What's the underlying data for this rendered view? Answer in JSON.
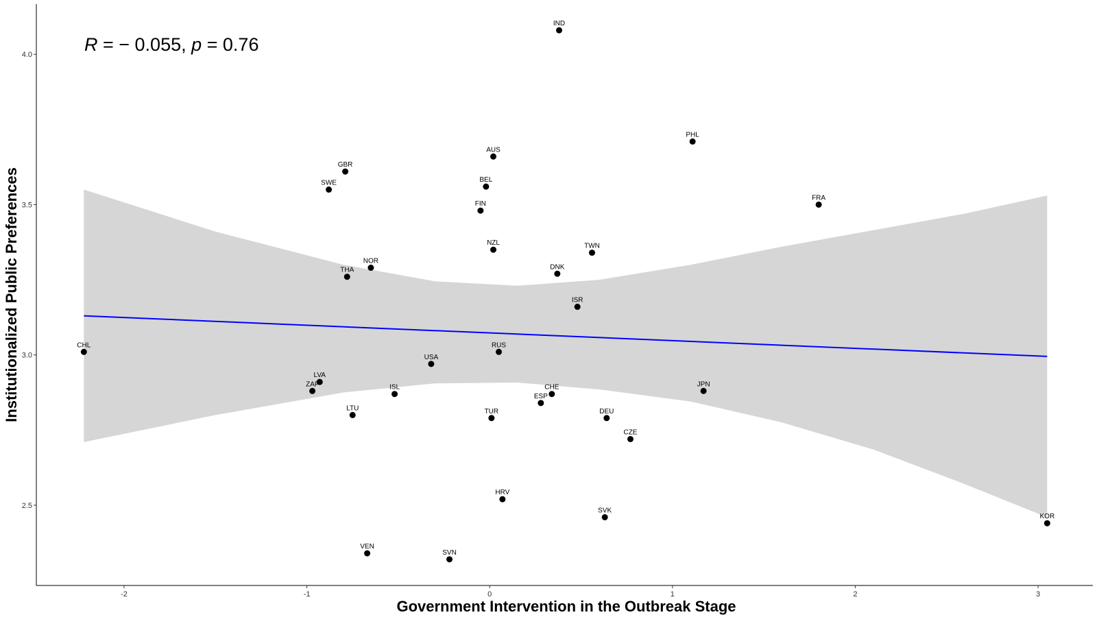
{
  "chart_data": {
    "type": "scatter",
    "xlabel": "Government Intervention in the Outbreak Stage",
    "ylabel": "Institutionalized Public Preferences",
    "xlim": [
      -2.48,
      3.3
    ],
    "ylim": [
      2.233,
      4.167
    ],
    "x_ticks": [
      -2,
      -1,
      0,
      1,
      2,
      3
    ],
    "y_ticks": [
      2.5,
      3.0,
      3.5,
      4.0
    ],
    "x_tick_labels": [
      "-2",
      "-1",
      "0",
      "1",
      "2",
      "3"
    ],
    "y_tick_labels": [
      "2.5",
      "3.0",
      "3.5",
      "4.0"
    ],
    "annotation": {
      "r_symbol": "R",
      "r_value": " = − 0.055, ",
      "p_symbol": "p",
      "p_value": " = 0.76"
    },
    "points": [
      {
        "label": "IND",
        "x": 0.38,
        "y": 4.08
      },
      {
        "label": "PHL",
        "x": 1.11,
        "y": 3.71
      },
      {
        "label": "AUS",
        "x": 0.02,
        "y": 3.66
      },
      {
        "label": "GBR",
        "x": -0.79,
        "y": 3.61
      },
      {
        "label": "BEL",
        "x": -0.02,
        "y": 3.56
      },
      {
        "label": "SWE",
        "x": -0.88,
        "y": 3.55
      },
      {
        "label": "FRA",
        "x": 1.8,
        "y": 3.5
      },
      {
        "label": "FIN",
        "x": -0.05,
        "y": 3.48
      },
      {
        "label": "NZL",
        "x": 0.02,
        "y": 3.35
      },
      {
        "label": "TWN",
        "x": 0.56,
        "y": 3.34
      },
      {
        "label": "NOR",
        "x": -0.65,
        "y": 3.29
      },
      {
        "label": "DNK",
        "x": 0.37,
        "y": 3.27
      },
      {
        "label": "THA",
        "x": -0.78,
        "y": 3.26
      },
      {
        "label": "ISR",
        "x": 0.48,
        "y": 3.16
      },
      {
        "label": "CHL",
        "x": -2.22,
        "y": 3.01
      },
      {
        "label": "RUS",
        "x": 0.05,
        "y": 3.01
      },
      {
        "label": "USA",
        "x": -0.32,
        "y": 2.97
      },
      {
        "label": "LVA",
        "x": -0.93,
        "y": 2.91
      },
      {
        "label": "ZAF",
        "x": -0.97,
        "y": 2.88
      },
      {
        "label": "JPN",
        "x": 1.17,
        "y": 2.88
      },
      {
        "label": "ISL",
        "x": -0.52,
        "y": 2.87
      },
      {
        "label": "CHE",
        "x": 0.34,
        "y": 2.87
      },
      {
        "label": "ESP",
        "x": 0.28,
        "y": 2.84
      },
      {
        "label": "LTU",
        "x": -0.75,
        "y": 2.8
      },
      {
        "label": "TUR",
        "x": 0.01,
        "y": 2.79
      },
      {
        "label": "DEU",
        "x": 0.64,
        "y": 2.79
      },
      {
        "label": "CZE",
        "x": 0.77,
        "y": 2.72
      },
      {
        "label": "HRV",
        "x": 0.07,
        "y": 2.52
      },
      {
        "label": "SVK",
        "x": 0.63,
        "y": 2.46
      },
      {
        "label": "KOR",
        "x": 3.05,
        "y": 2.44
      },
      {
        "label": "VEN",
        "x": -0.67,
        "y": 2.34
      },
      {
        "label": "SVN",
        "x": -0.22,
        "y": 2.32
      }
    ],
    "regression": {
      "x_start": -2.22,
      "y_start": 3.13,
      "x_end": 3.05,
      "y_end": 2.995,
      "color": "#0000ff"
    },
    "confidence_band": {
      "color": "#d6d6d6",
      "upper": [
        [
          -2.22,
          3.55
        ],
        [
          -1.5,
          3.41
        ],
        [
          -0.8,
          3.3
        ],
        [
          -0.3,
          3.245
        ],
        [
          0.15,
          3.23
        ],
        [
          0.6,
          3.25
        ],
        [
          1.1,
          3.3
        ],
        [
          1.6,
          3.36
        ],
        [
          2.1,
          3.415
        ],
        [
          2.6,
          3.47
        ],
        [
          3.05,
          3.53
        ]
      ],
      "lower": [
        [
          3.05,
          2.46
        ],
        [
          2.6,
          2.57
        ],
        [
          2.1,
          2.685
        ],
        [
          1.6,
          2.775
        ],
        [
          1.1,
          2.845
        ],
        [
          0.6,
          2.885
        ],
        [
          0.15,
          2.908
        ],
        [
          -0.3,
          2.905
        ],
        [
          -0.8,
          2.875
        ],
        [
          -1.5,
          2.8
        ],
        [
          -2.22,
          2.71
        ]
      ]
    },
    "point_color": "#000000",
    "grid": false
  }
}
